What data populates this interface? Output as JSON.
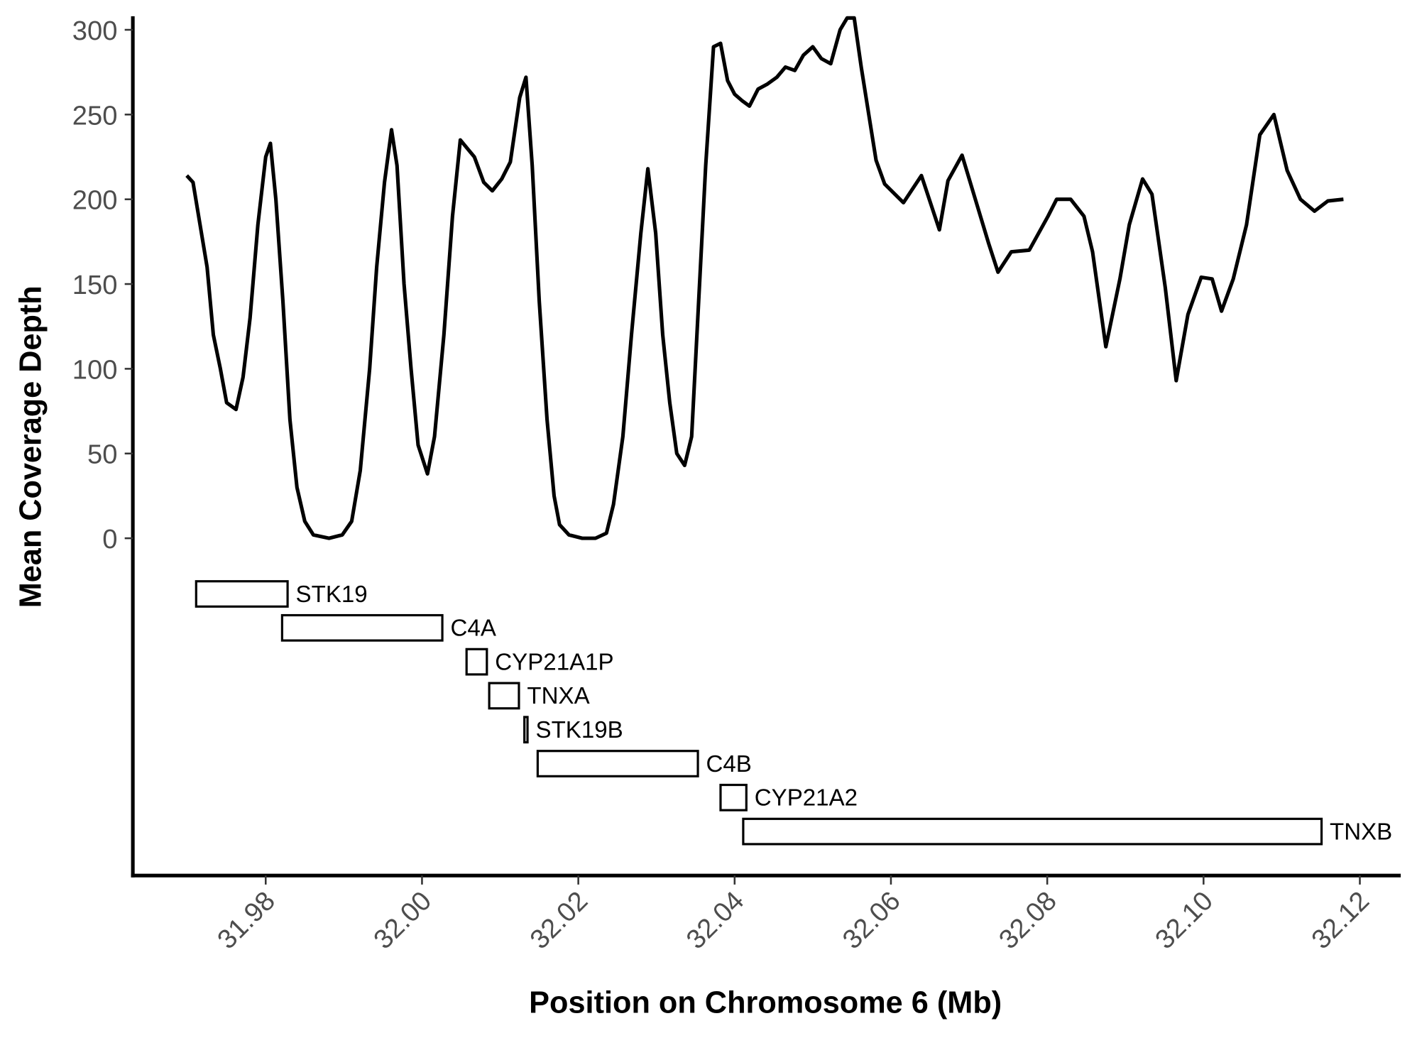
{
  "chart_data": {
    "type": "line",
    "xlabel": "Position on Chromosome 6 (Mb)",
    "ylabel": "Mean Coverage Depth",
    "xlim": [
      31.963,
      32.125
    ],
    "ylim": [
      -199,
      308
    ],
    "xticks": [
      31.98,
      {
        "value": 32.0,
        "label": "32.00"
      },
      32.02,
      32.04,
      32.06,
      32.08,
      {
        "value": 32.1,
        "label": "32.10"
      },
      32.12
    ],
    "yticks": [
      0,
      50,
      100,
      150,
      200,
      250,
      300
    ],
    "x": [
      31.9699,
      31.9707,
      31.9716,
      31.9725,
      31.9733,
      31.9742,
      31.975,
      31.9762,
      31.9771,
      31.978,
      31.979,
      31.98,
      31.9806,
      31.9813,
      31.9822,
      31.9831,
      31.984,
      31.985,
      31.9861,
      31.9881,
      31.9898,
      31.991,
      31.9921,
      31.9933,
      31.9942,
      31.9952,
      31.9961,
      31.9968,
      31.9977,
      31.9986,
      31.9995,
      32.0007,
      32.0016,
      32.0028,
      32.0039,
      32.0049,
      32.0058,
      32.0067,
      32.0079,
      32.009,
      32.0102,
      32.0113,
      32.0125,
      32.0133,
      32.0141,
      32.015,
      32.016,
      32.0169,
      32.0176,
      32.0188,
      32.0205,
      32.0222,
      32.0236,
      32.0245,
      32.0257,
      32.0268,
      32.028,
      32.0289,
      32.0299,
      32.0308,
      32.0317,
      32.0326,
      32.0336,
      32.0345,
      32.0354,
      32.0363,
      32.0373,
      32.0382,
      32.0391,
      32.04,
      32.041,
      32.0419,
      32.043,
      32.0442,
      32.0454,
      32.0465,
      32.0477,
      32.0488,
      32.05,
      32.0511,
      32.0523,
      32.0535,
      32.0544,
      32.0553,
      32.0562,
      32.0572,
      32.0581,
      32.0592,
      32.0616,
      32.0639,
      32.0662,
      32.0673,
      32.0691,
      32.0708,
      32.0725,
      32.0737,
      32.0754,
      32.0777,
      32.0801,
      32.0812,
      32.083,
      32.0847,
      32.0858,
      32.0875,
      32.0893,
      32.0905,
      32.0922,
      32.0934,
      32.0951,
      32.0965,
      32.098,
      32.0997,
      32.1011,
      32.1023,
      32.1038,
      32.1055,
      32.1072,
      32.109,
      32.1107,
      32.1124,
      32.1142,
      32.1159,
      32.1179
    ],
    "series": [
      {
        "color": "#000000",
        "values": [
          214,
          210,
          185,
          160,
          120,
          100,
          80,
          76,
          95,
          130,
          185,
          225,
          233,
          200,
          140,
          70,
          30,
          10,
          2,
          0,
          2,
          10,
          40,
          100,
          160,
          210,
          241,
          220,
          150,
          100,
          55,
          38,
          60,
          120,
          190,
          235,
          230,
          225,
          210,
          205,
          212,
          222,
          260,
          272,
          220,
          140,
          70,
          25,
          8,
          2,
          0,
          0,
          3,
          20,
          60,
          120,
          180,
          218,
          180,
          120,
          80,
          50,
          43,
          60,
          140,
          220,
          290,
          292,
          270,
          262,
          258,
          255,
          265,
          268,
          272,
          278,
          276,
          285,
          290,
          283,
          280,
          300,
          307,
          307,
          278,
          249,
          223,
          209,
          198,
          214,
          182,
          211,
          226,
          200,
          174,
          157,
          169,
          170,
          190,
          200,
          200,
          190,
          169,
          113,
          153,
          185,
          212,
          203,
          148,
          93,
          132,
          154,
          153,
          134,
          153,
          185,
          238,
          250,
          217,
          200,
          193,
          199,
          200
        ]
      }
    ],
    "genes": [
      {
        "label": "STK19",
        "start": 31.9711,
        "end": 31.9828
      },
      {
        "label": "C4A",
        "start": 31.9821,
        "end": 32.0026
      },
      {
        "label": "CYP21A1P",
        "start": 32.0057,
        "end": 32.0083
      },
      {
        "label": "TNXA",
        "start": 32.0086,
        "end": 32.0124
      },
      {
        "label": "STK19B",
        "start": 32.0131,
        "end": 32.0135
      },
      {
        "label": "C4B",
        "start": 32.0148,
        "end": 32.0353
      },
      {
        "label": "CYP21A2",
        "start": 32.0382,
        "end": 32.0415
      },
      {
        "label": "TNXB",
        "start": 32.0411,
        "end": 32.1151
      }
    ]
  }
}
